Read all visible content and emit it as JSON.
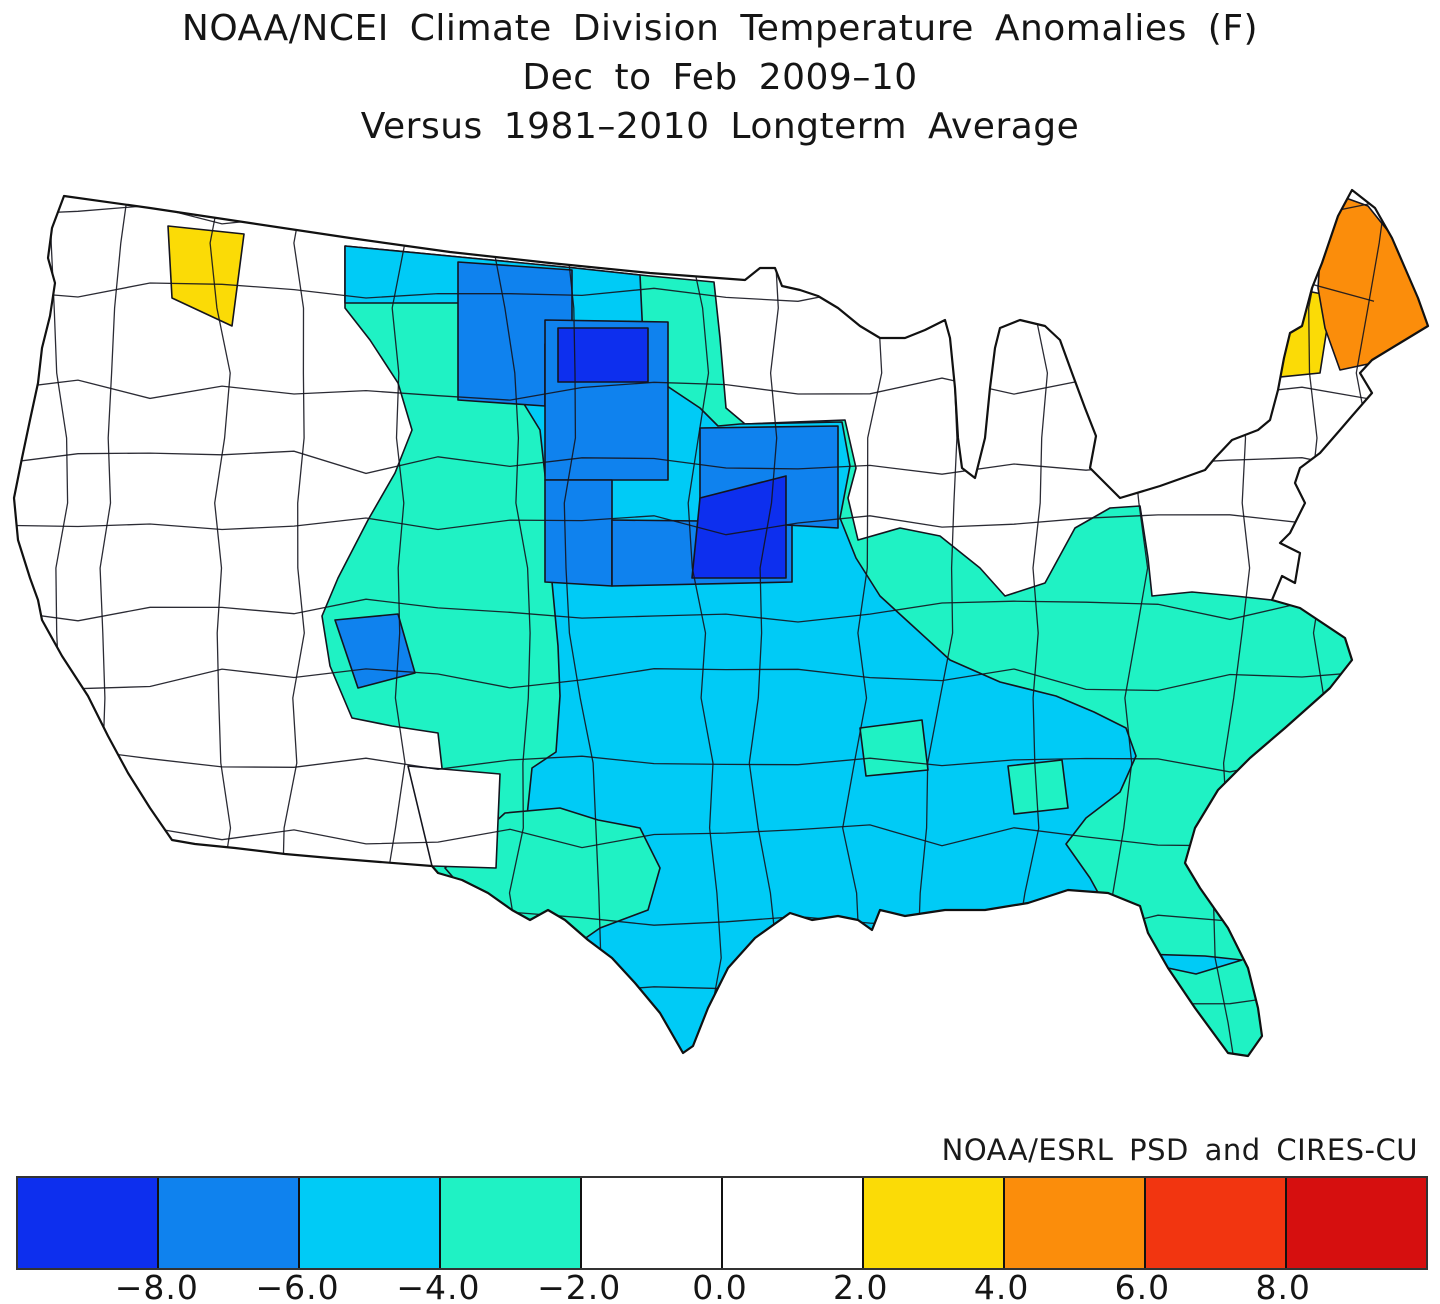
{
  "title": {
    "line1": "NOAA/NCEI Climate Division Temperature Anomalies (F)",
    "line2": "Dec to Feb 2009–10",
    "line3": "Versus 1981–2010 Longterm Average"
  },
  "attribution": "NOAA/ESRL PSD and CIRES-CU",
  "chart_data": {
    "type": "choropleth",
    "title": "NOAA/NCEI Climate Division Temperature Anomalies (F)",
    "period": "Dec to Feb 2009-10",
    "baseline": "1981-2010 Longterm Average",
    "units": "degrees F anomaly",
    "geography": "Contiguous United States climate divisions",
    "legend_position": "bottom",
    "colorbar": {
      "tick_labels": [
        "-8.0",
        "-6.0",
        "-4.0",
        "-2.0",
        "0.0",
        "2.0",
        "4.0",
        "6.0",
        "8.0"
      ],
      "segments": [
        {
          "range": "below -8.0",
          "color": "#0d2fee"
        },
        {
          "range": "-8.0 to -6.0",
          "color": "#0f82ee"
        },
        {
          "range": "-6.0 to -4.0",
          "color": "#00cbf6"
        },
        {
          "range": "-4.0 to -2.0",
          "color": "#1ff2c4"
        },
        {
          "range": "-2.0 to 0.0",
          "color": "#ffffff"
        },
        {
          "range": "0.0 to 2.0",
          "color": "#ffffff"
        },
        {
          "range": "2.0 to 4.0",
          "color": "#fbdb06"
        },
        {
          "range": "4.0 to 6.0",
          "color": "#fb8d0b"
        },
        {
          "range": "6.0 to 8.0",
          "color": "#f23510"
        },
        {
          "range": "above 8.0",
          "color": "#d60f0f"
        }
      ]
    },
    "map_colors": {
      "land": "#ffffff",
      "border": "#14141e",
      "outline": "#111111",
      "blue_dark": "#0d2fee",
      "blue": "#0f82ee",
      "cyan": "#00cbf6",
      "turquoise": "#1ff2c4",
      "yellow": "#fbdb06",
      "orange": "#fb8d0b"
    },
    "regions": [
      {
        "area": "Northeast Washington",
        "anomaly_f": "+2 to +4"
      },
      {
        "area": "Vermont / New Hampshire / far northern New York",
        "anomaly_f": "+2 to +4"
      },
      {
        "area": "Maine",
        "anomaly_f": "+4 to +6"
      },
      {
        "area": "Eastern Montana, Dakotas, Nebraska, western Iowa, NE Utah / NW Colorado",
        "anomaly_f": "-8 to -6"
      },
      {
        "area": "North-central South Dakota and eastern Nebraska / SW Iowa cores",
        "anomaly_f": "-10 to -8"
      },
      {
        "area": "Central & Southern Plains, Missouri, Mid-South, Gulf states, Kentucky, north Florida, Appalachian ridge",
        "anomaly_f": "-6 to -4"
      },
      {
        "area": "Central Montana, Wyoming, Colorado, New Mexico, west Texas, Ohio Valley, Virginia, Carolinas, south Florida",
        "anomaly_f": "-4 to -2"
      },
      {
        "area": "West Coast, Great Basin, upper Midwest / Great Lakes, Northeast corridor",
        "anomaly_f": "-2 to +2 (near normal)"
      }
    ]
  }
}
